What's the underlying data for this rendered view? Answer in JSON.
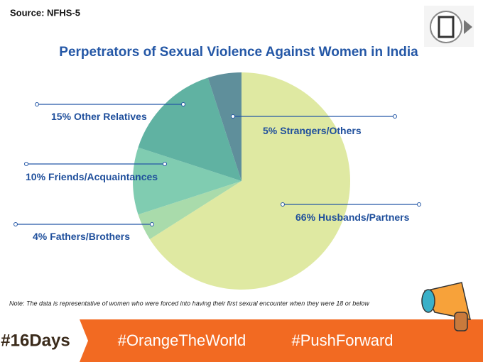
{
  "source": "Source: NFHS-5",
  "chart_data": {
    "type": "pie",
    "title": "Perpetrators of Sexual  Violence Against Women in India",
    "categories": [
      "Husbands/Partners",
      "Fathers/Brothers",
      "Friends/Acquaintances",
      "Other Relatives",
      "Strangers/Others"
    ],
    "values": [
      66,
      4,
      10,
      15,
      5
    ],
    "value_labels": [
      "66%",
      "4%",
      "10%",
      "15%",
      "5%"
    ],
    "colors": [
      "#dfe9a2",
      "#a9dbab",
      "#80ccb1",
      "#60b2a2",
      "#5f8f9b"
    ]
  },
  "note": "Note: The data is representative of women who were forced into having their first sexual encounter when they were 18 or below",
  "footer": {
    "hashtags": [
      "#16Days",
      "#OrangeTheWorld",
      "#PushForward"
    ]
  }
}
